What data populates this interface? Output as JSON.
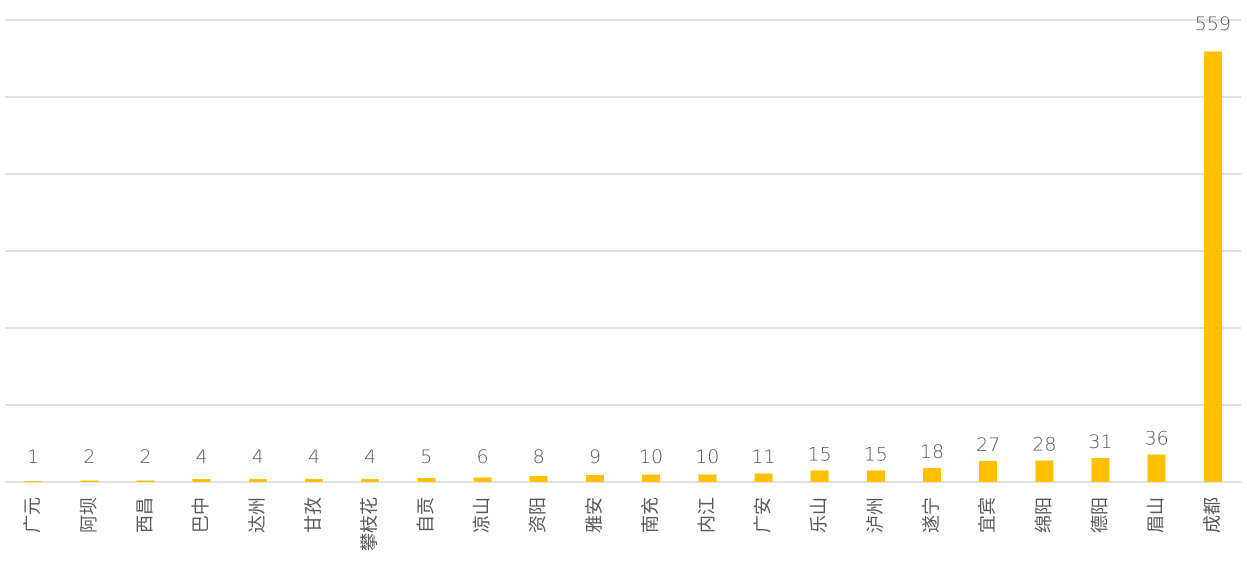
{
  "chart_data": {
    "type": "bar",
    "title": "",
    "xlabel": "",
    "ylabel": "",
    "categories": [
      "广元",
      "阿坝",
      "西昌",
      "巴中",
      "达州",
      "甘孜",
      "攀枝花",
      "自贡",
      "凉山",
      "资阳",
      "雅安",
      "南充",
      "内江",
      "广安",
      "乐山",
      "泸州",
      "遂宁",
      "宜宾",
      "绵阳",
      "德阳",
      "眉山",
      "成都"
    ],
    "values": [
      1,
      2,
      2,
      4,
      4,
      4,
      4,
      5,
      6,
      8,
      9,
      10,
      10,
      11,
      15,
      15,
      18,
      27,
      28,
      31,
      36,
      559
    ],
    "ylim": [
      0,
      600
    ],
    "grid": true,
    "legend": "none",
    "bar_color": "#FFC000"
  }
}
